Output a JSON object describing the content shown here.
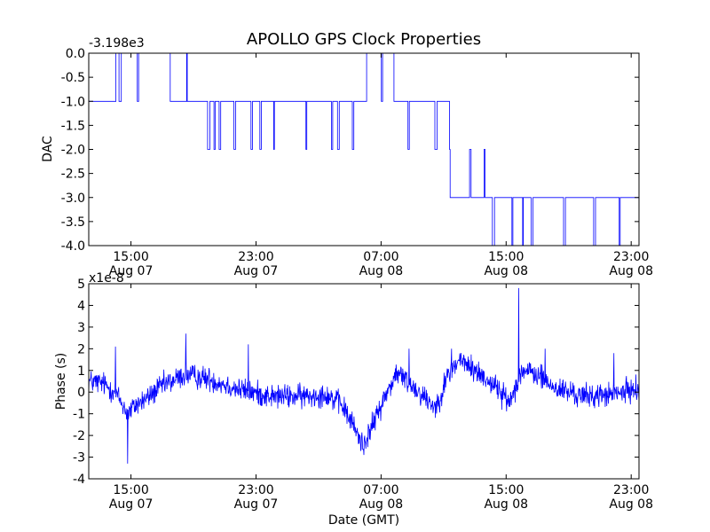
{
  "chart_data": {
    "title": "APOLLO GPS Clock Properties",
    "xlabel": "Date (GMT)",
    "x_ticks": [
      {
        "hours": 15,
        "time": "15:00",
        "date": "Aug 07"
      },
      {
        "hours": 23,
        "time": "23:00",
        "date": "Aug 07"
      },
      {
        "hours": 31,
        "time": "07:00",
        "date": "Aug 08"
      },
      {
        "hours": 39,
        "time": "15:00",
        "date": "Aug 08"
      },
      {
        "hours": 47,
        "time": "23:00",
        "date": "Aug 08"
      }
    ],
    "xlim_hours": [
      12.3,
      47.5
    ],
    "panels": [
      {
        "type": "line",
        "ylabel": "DAC",
        "offset_label": "-3.198e3",
        "ylim": [
          -4.0,
          0.0
        ],
        "y_ticks": [
          "0.0",
          "-0.5",
          "-1.0",
          "-1.5",
          "-2.0",
          "-2.5",
          "-3.0",
          "-3.5",
          "-4.0"
        ],
        "color": "#0000ff",
        "levels": [
          {
            "start": 12.3,
            "end": 13.7,
            "base": -1,
            "alt": 0
          },
          {
            "start": 13.7,
            "end": 15.0,
            "base": 0,
            "alt": -1
          },
          {
            "start": 15.0,
            "end": 17.4,
            "base": 0,
            "alt": -1
          },
          {
            "start": 17.4,
            "end": 18.9,
            "base": -1,
            "alt": 0
          },
          {
            "start": 18.9,
            "end": 29.8,
            "base": -1,
            "alt": -2
          },
          {
            "start": 29.8,
            "end": 31.4,
            "base": 0,
            "alt": -1
          },
          {
            "start": 31.4,
            "end": 35.4,
            "base": -1,
            "alt": -2
          },
          {
            "start": 35.4,
            "end": 37.7,
            "base": -3,
            "alt": -2
          },
          {
            "start": 37.7,
            "end": 40.0,
            "base": -3,
            "alt": -4
          },
          {
            "start": 40.0,
            "end": 47.5,
            "base": -3,
            "alt": -4
          }
        ]
      },
      {
        "type": "line",
        "ylabel": "Phase (s)",
        "offset_label": "x1e-8",
        "ylim": [
          -4,
          5
        ],
        "y_ticks": [
          "5",
          "4",
          "3",
          "2",
          "1",
          "0",
          "-1",
          "-2",
          "-3",
          "-4"
        ],
        "color": "#0000ff",
        "trend": [
          [
            12.3,
            0.5
          ],
          [
            13.2,
            0.4
          ],
          [
            14.0,
            0.0
          ],
          [
            14.8,
            -1.0
          ],
          [
            15.3,
            -0.6
          ],
          [
            16.0,
            -0.3
          ],
          [
            17.0,
            0.3
          ],
          [
            18.5,
            0.8
          ],
          [
            20.0,
            0.6
          ],
          [
            22.0,
            0.1
          ],
          [
            24.0,
            -0.2
          ],
          [
            26.0,
            -0.2
          ],
          [
            27.5,
            -0.1
          ],
          [
            28.5,
            -0.6
          ],
          [
            29.2,
            -1.5
          ],
          [
            29.8,
            -2.4
          ],
          [
            30.3,
            -1.8
          ],
          [
            31.0,
            -0.6
          ],
          [
            32.0,
            0.9
          ],
          [
            33.0,
            0.3
          ],
          [
            34.5,
            -0.7
          ],
          [
            35.3,
            0.8
          ],
          [
            36.0,
            1.5
          ],
          [
            37.0,
            1.0
          ],
          [
            38.3,
            0.3
          ],
          [
            39.2,
            -0.5
          ],
          [
            40.0,
            1.0
          ],
          [
            41.0,
            0.8
          ],
          [
            42.0,
            0.2
          ],
          [
            44.0,
            -0.2
          ],
          [
            46.0,
            -0.1
          ],
          [
            47.5,
            0.2
          ]
        ],
        "spikes": [
          [
            14.8,
            -3.3
          ],
          [
            18.5,
            2.7
          ],
          [
            22.5,
            2.2
          ],
          [
            39.8,
            4.8
          ],
          [
            14.0,
            2.1
          ],
          [
            35.5,
            2.0
          ],
          [
            29.9,
            -2.9
          ],
          [
            32.8,
            2.0
          ],
          [
            41.5,
            2.0
          ],
          [
            45.9,
            1.8
          ]
        ]
      }
    ]
  }
}
